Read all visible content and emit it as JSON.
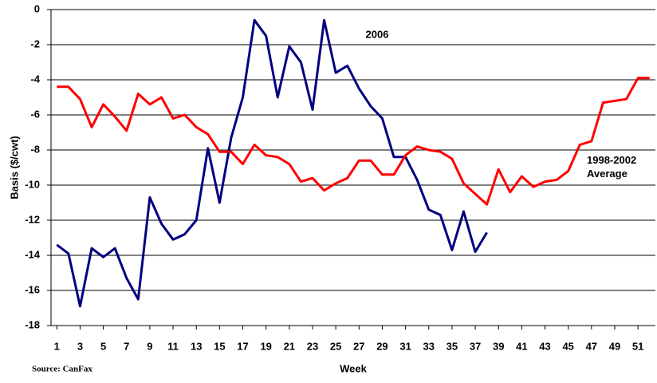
{
  "chart_data": {
    "type": "line",
    "y_label": "Basis ($/cwt)",
    "x_label": "Week",
    "source": "Source: CanFax",
    "x": [
      1,
      2,
      3,
      4,
      5,
      6,
      7,
      8,
      9,
      10,
      11,
      12,
      13,
      14,
      15,
      16,
      17,
      18,
      19,
      20,
      21,
      22,
      23,
      24,
      25,
      26,
      27,
      28,
      29,
      30,
      31,
      32,
      33,
      34,
      35,
      36,
      37,
      38,
      39,
      40,
      41,
      42,
      43,
      44,
      45,
      46,
      47,
      48,
      49,
      50,
      51,
      52
    ],
    "series": [
      {
        "name": "2006",
        "color": "#000080",
        "values": [
          -13.4,
          -13.9,
          -16.9,
          -13.6,
          -14.1,
          -13.6,
          -15.3,
          -16.5,
          -10.7,
          -12.2,
          -13.1,
          -12.8,
          -12.0,
          -7.9,
          -11.0,
          -7.3,
          -5.0,
          -0.6,
          -1.5,
          -5.0,
          -2.1,
          -3.0,
          -5.7,
          -0.6,
          -3.6,
          -3.2,
          -4.5,
          -5.5,
          -6.2,
          -8.4,
          -8.4,
          -9.7,
          -11.4,
          -11.7,
          -13.7,
          -11.5,
          -13.8,
          -12.7,
          null,
          null,
          null,
          null,
          null,
          null,
          null,
          null,
          null,
          null,
          null,
          null,
          null,
          null
        ]
      },
      {
        "name": "1998-2002 Average",
        "color": "#ff0000",
        "values": [
          -4.4,
          -4.4,
          -5.1,
          -6.7,
          -5.4,
          -6.1,
          -6.9,
          -4.8,
          -5.4,
          -5.0,
          -6.2,
          -6.0,
          -6.7,
          -7.1,
          -8.1,
          -8.1,
          -8.8,
          -7.7,
          -8.3,
          -8.4,
          -8.8,
          -9.8,
          -9.6,
          -10.3,
          -9.9,
          -9.6,
          -8.6,
          -8.6,
          -9.4,
          -9.4,
          -8.3,
          -7.8,
          -8.0,
          -8.1,
          -8.5,
          -9.9,
          -10.5,
          -11.1,
          -9.1,
          -10.4,
          -9.5,
          -10.1,
          -9.8,
          -9.7,
          -9.2,
          -7.7,
          -7.5,
          -5.3,
          -5.2,
          -5.1,
          -3.9,
          -3.9
        ]
      }
    ],
    "xlim": [
      0.5,
      52.5
    ],
    "xticks": [
      1,
      3,
      5,
      7,
      9,
      11,
      13,
      15,
      17,
      19,
      21,
      23,
      25,
      27,
      29,
      31,
      33,
      35,
      37,
      39,
      41,
      43,
      45,
      47,
      49,
      51
    ],
    "ylim": [
      -18,
      0
    ],
    "yticks": [
      0,
      -2,
      -4,
      -6,
      -8,
      -10,
      -12,
      -14,
      -16,
      -18
    ],
    "grid": true
  }
}
